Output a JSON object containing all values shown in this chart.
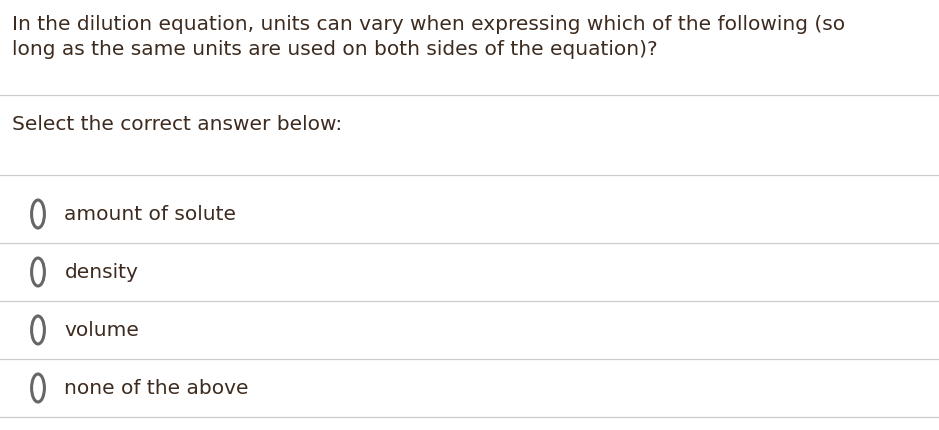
{
  "question_line1": "In the dilution equation, units can vary when expressing which of the following (so",
  "question_line2": "long as the same units are used on both sides of the equation)?",
  "prompt": "Select the correct answer below:",
  "options": [
    "amount of solute",
    "density",
    "volume",
    "none of the above"
  ],
  "bg_color": "#ffffff",
  "text_color": "#3d2b1f",
  "circle_color": "#666666",
  "line_color": "#cccccc",
  "question_fontsize": 14.5,
  "prompt_fontsize": 14.5,
  "option_fontsize": 14.5,
  "fig_width": 9.39,
  "fig_height": 4.3
}
